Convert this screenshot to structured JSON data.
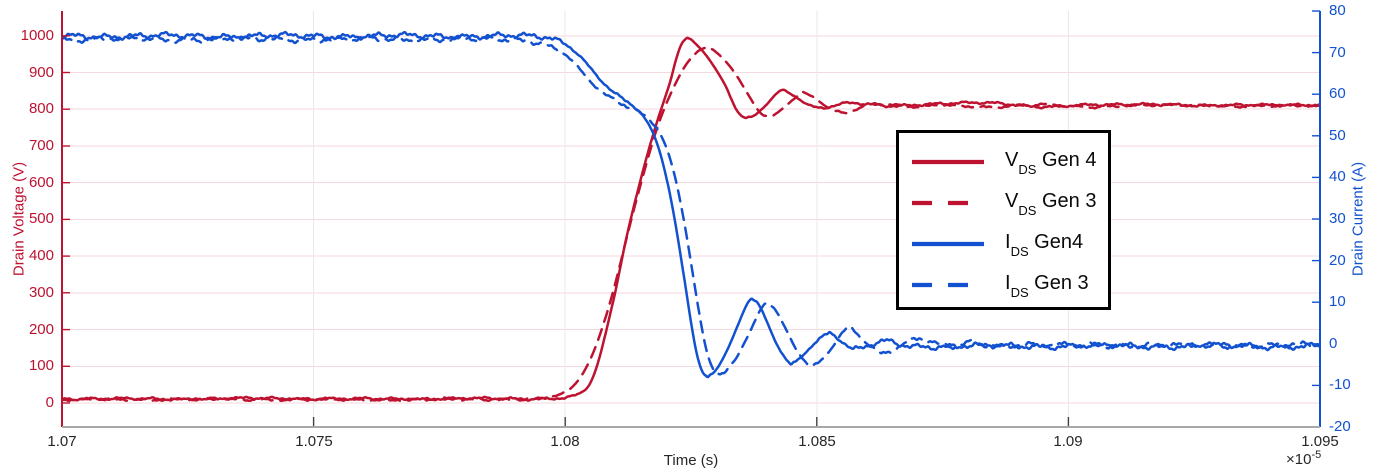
{
  "figure": {
    "background": "#ffffff"
  },
  "colors": {
    "voltage_red": "#bd1230",
    "current_blue": "#1252d0",
    "grid_horizontal": "#f4dade",
    "grid_vertical": "#e9e9e9",
    "x_axis_line": "#a8a8a8",
    "x_tick_mark": "#404040",
    "x_text": "#262626",
    "legend_border": "#000000"
  },
  "legend": {
    "entries": [
      {
        "prefix": "V",
        "sub": "DS",
        "rest": " Gen 4",
        "dashed": false,
        "color": "#bd1230"
      },
      {
        "prefix": "V",
        "sub": "DS",
        "rest": " Gen 3",
        "dashed": true,
        "color": "#bd1230"
      },
      {
        "prefix": "I",
        "sub": "DS",
        "rest": " Gen4",
        "dashed": false,
        "color": "#1252d0"
      },
      {
        "prefix": "I",
        "sub": "DS",
        "rest": " Gen 3",
        "dashed": true,
        "color": "#1252d0"
      }
    ]
  },
  "chart_data": {
    "type": "line",
    "title": "",
    "xlabel": "Time (s)",
    "x_mult_base": "×10",
    "x_mult_exp": "-5",
    "x_unit": "1e-5 s",
    "x_range": [
      1.07,
      1.095
    ],
    "x_ticks": [
      1.07,
      1.075,
      1.08,
      1.085,
      1.09,
      1.095
    ],
    "x_grid_ticks": [
      1.075,
      1.08,
      1.085,
      1.09
    ],
    "grid": true,
    "legend_position": "inside upper right",
    "y_left": {
      "label": "Drain Voltage (V)",
      "ticks": [
        0,
        100,
        200,
        300,
        400,
        500,
        600,
        700,
        800,
        900,
        1000
      ],
      "range": [
        -65,
        1067
      ],
      "color": "#bd1230"
    },
    "y_right": {
      "label": "Drain Current (A)",
      "ticks": [
        -20,
        -10,
        0,
        10,
        20,
        30,
        40,
        50,
        60,
        70,
        80
      ],
      "range": [
        -20,
        80
      ],
      "color": "#1252d0"
    },
    "series": [
      {
        "name": "V_DS Gen 4",
        "axis": "left",
        "color": "#bd1230",
        "dashed": false,
        "noise": {
          "amp": 4.2,
          "seed": 1,
          "slope0": 6
        },
        "points": [
          [
            1.07,
            12
          ],
          [
            1.072,
            11
          ],
          [
            1.074,
            12.5
          ],
          [
            1.076,
            11
          ],
          [
            1.078,
            12
          ],
          [
            1.079,
            11.5
          ],
          [
            1.0795,
            12
          ],
          [
            1.08,
            15
          ],
          [
            1.0802,
            21
          ],
          [
            1.0804,
            36
          ],
          [
            1.0805,
            55
          ],
          [
            1.0806,
            88
          ],
          [
            1.0807,
            133
          ],
          [
            1.0808,
            188
          ],
          [
            1.0809,
            246
          ],
          [
            1.081,
            305
          ],
          [
            1.0812,
            440
          ],
          [
            1.0814,
            555
          ],
          [
            1.0816,
            660
          ],
          [
            1.0818,
            755
          ],
          [
            1.082,
            838
          ],
          [
            1.0821,
            882
          ],
          [
            1.0822,
            934
          ],
          [
            1.0823,
            974
          ],
          [
            1.0824,
            992
          ],
          [
            1.0825,
            989
          ],
          [
            1.0826,
            977
          ],
          [
            1.0828,
            947
          ],
          [
            1.083,
            907
          ],
          [
            1.0832,
            860
          ],
          [
            1.0833,
            828
          ],
          [
            1.0834,
            799
          ],
          [
            1.0835,
            783
          ],
          [
            1.0836,
            777
          ],
          [
            1.0837,
            779
          ],
          [
            1.0838,
            787
          ],
          [
            1.084,
            813
          ],
          [
            1.0842,
            843
          ],
          [
            1.0843,
            852
          ],
          [
            1.0844,
            848
          ],
          [
            1.0846,
            832
          ],
          [
            1.0848,
            814
          ],
          [
            1.085,
            804
          ],
          [
            1.0851,
            802
          ],
          [
            1.0853,
            807
          ],
          [
            1.0855,
            814
          ],
          [
            1.0857,
            817
          ],
          [
            1.086,
            814
          ],
          [
            1.0865,
            810
          ],
          [
            1.087,
            812
          ],
          [
            1.0875,
            814
          ],
          [
            1.0885,
            818
          ],
          [
            1.0895,
            806
          ],
          [
            1.0905,
            812
          ],
          [
            1.0915,
            814
          ],
          [
            1.0925,
            809
          ],
          [
            1.0935,
            813
          ],
          [
            1.0945,
            810
          ],
          [
            1.095,
            811
          ]
        ]
      },
      {
        "name": "V_DS Gen 3",
        "axis": "left",
        "color": "#bd1230",
        "dashed": true,
        "noise": {
          "amp": 4.0,
          "seed": 2,
          "slope0": 6
        },
        "points": [
          [
            1.07,
            9
          ],
          [
            1.073,
            10
          ],
          [
            1.076,
            9
          ],
          [
            1.078,
            10
          ],
          [
            1.079,
            10.5
          ],
          [
            1.0794,
            11
          ],
          [
            1.0796,
            13
          ],
          [
            1.0798,
            19
          ],
          [
            1.08,
            29
          ],
          [
            1.0802,
            52
          ],
          [
            1.0804,
            92
          ],
          [
            1.0806,
            152
          ],
          [
            1.0808,
            232
          ],
          [
            1.081,
            328
          ],
          [
            1.0812,
            438
          ],
          [
            1.0814,
            545
          ],
          [
            1.0816,
            645
          ],
          [
            1.0818,
            738
          ],
          [
            1.082,
            812
          ],
          [
            1.0822,
            872
          ],
          [
            1.0824,
            921
          ],
          [
            1.0826,
            953
          ],
          [
            1.0827,
            964
          ],
          [
            1.0828,
            968
          ],
          [
            1.0829,
            965
          ],
          [
            1.083,
            955
          ],
          [
            1.0832,
            929
          ],
          [
            1.0834,
            893
          ],
          [
            1.0836,
            848
          ],
          [
            1.0838,
            804
          ],
          [
            1.0839,
            788
          ],
          [
            1.084,
            781
          ],
          [
            1.0841,
            781
          ],
          [
            1.0842,
            788
          ],
          [
            1.0844,
            811
          ],
          [
            1.0846,
            834
          ],
          [
            1.0847,
            843
          ],
          [
            1.0848,
            841
          ],
          [
            1.085,
            827
          ],
          [
            1.0852,
            806
          ],
          [
            1.0854,
            794
          ],
          [
            1.0856,
            793
          ],
          [
            1.0858,
            801
          ],
          [
            1.086,
            811
          ],
          [
            1.0862,
            816
          ],
          [
            1.0865,
            811
          ],
          [
            1.087,
            806
          ],
          [
            1.0875,
            812
          ],
          [
            1.0885,
            806
          ],
          [
            1.0895,
            812
          ],
          [
            1.0905,
            807
          ],
          [
            1.0915,
            810
          ],
          [
            1.0925,
            812
          ],
          [
            1.0935,
            807
          ],
          [
            1.0945,
            811
          ],
          [
            1.095,
            809
          ]
        ]
      },
      {
        "name": "I_DS Gen4",
        "axis": "right",
        "color": "#1252d0",
        "dashed": false,
        "noise": {
          "amp": 0.8,
          "seed": 3,
          "slope0": 0.9
        },
        "points": [
          [
            1.07,
            74
          ],
          [
            1.073,
            74
          ],
          [
            1.076,
            74
          ],
          [
            1.078,
            74
          ],
          [
            1.0795,
            73.8
          ],
          [
            1.0798,
            73.2
          ],
          [
            1.08,
            72.2
          ],
          [
            1.0802,
            70.3
          ],
          [
            1.0804,
            67.8
          ],
          [
            1.0806,
            64.9
          ],
          [
            1.0808,
            62.2
          ],
          [
            1.081,
            60
          ],
          [
            1.0812,
            58.4
          ],
          [
            1.0814,
            56.6
          ],
          [
            1.0816,
            53.8
          ],
          [
            1.0817,
            51.8
          ],
          [
            1.0818,
            49
          ],
          [
            1.0819,
            45.3
          ],
          [
            1.082,
            40.5
          ],
          [
            1.0821,
            34.8
          ],
          [
            1.0822,
            28.2
          ],
          [
            1.0823,
            20.8
          ],
          [
            1.0824,
            13
          ],
          [
            1.0825,
            5.2
          ],
          [
            1.0826,
            -1.5
          ],
          [
            1.0827,
            -6
          ],
          [
            1.0828,
            -7.8
          ],
          [
            1.0829,
            -7.5
          ],
          [
            1.083,
            -6.2
          ],
          [
            1.0832,
            -2
          ],
          [
            1.0834,
            3.5
          ],
          [
            1.0836,
            9.2
          ],
          [
            1.0837,
            10.8
          ],
          [
            1.0838,
            10.2
          ],
          [
            1.0839,
            8.2
          ],
          [
            1.084,
            5.5
          ],
          [
            1.0842,
            0
          ],
          [
            1.0844,
            -3.8
          ],
          [
            1.0845,
            -4.6
          ],
          [
            1.0846,
            -4.2
          ],
          [
            1.0848,
            -1.8
          ],
          [
            1.085,
            0.8
          ],
          [
            1.0852,
            2.4
          ],
          [
            1.0853,
            2.2
          ],
          [
            1.0855,
            0.5
          ],
          [
            1.0857,
            -1.2
          ],
          [
            1.0858,
            -1.5
          ],
          [
            1.086,
            -0.8
          ],
          [
            1.0862,
            0.2
          ],
          [
            1.0864,
            0.6
          ],
          [
            1.0866,
            0
          ],
          [
            1.087,
            -0.5
          ],
          [
            1.088,
            -0.6
          ],
          [
            1.089,
            -0.5
          ],
          [
            1.09,
            -0.6
          ],
          [
            1.091,
            -0.5
          ],
          [
            1.092,
            -0.6
          ],
          [
            1.093,
            -0.5
          ],
          [
            1.094,
            -0.6
          ],
          [
            1.095,
            -0.5
          ]
        ]
      },
      {
        "name": "I_DS Gen 3",
        "axis": "right",
        "color": "#1252d0",
        "dashed": true,
        "noise": {
          "amp": 0.75,
          "seed": 4,
          "slope0": 0.9
        },
        "points": [
          [
            1.07,
            73.2
          ],
          [
            1.073,
            73.2
          ],
          [
            1.076,
            73.2
          ],
          [
            1.078,
            73.2
          ],
          [
            1.0792,
            73
          ],
          [
            1.0795,
            72.4
          ],
          [
            1.0797,
            71.5
          ],
          [
            1.08,
            69.6
          ],
          [
            1.0802,
            67.2
          ],
          [
            1.0804,
            64.4
          ],
          [
            1.0806,
            61.8
          ],
          [
            1.0808,
            59.8
          ],
          [
            1.081,
            58.4
          ],
          [
            1.0812,
            57.3
          ],
          [
            1.0814,
            56.2
          ],
          [
            1.0816,
            54.7
          ],
          [
            1.0818,
            52.2
          ],
          [
            1.0819,
            50.2
          ],
          [
            1.082,
            47.5
          ],
          [
            1.0821,
            43.8
          ],
          [
            1.0822,
            39.2
          ],
          [
            1.0823,
            33.5
          ],
          [
            1.0824,
            26.8
          ],
          [
            1.0825,
            19.5
          ],
          [
            1.0826,
            12
          ],
          [
            1.0827,
            4.8
          ],
          [
            1.0828,
            -1.2
          ],
          [
            1.0829,
            -5
          ],
          [
            1.083,
            -7
          ],
          [
            1.0831,
            -7.4
          ],
          [
            1.0832,
            -6.6
          ],
          [
            1.0834,
            -3.4
          ],
          [
            1.0836,
            1.2
          ],
          [
            1.0838,
            6.2
          ],
          [
            1.0839,
            8.6
          ],
          [
            1.084,
            9.8
          ],
          [
            1.0841,
            9.4
          ],
          [
            1.0842,
            7.8
          ],
          [
            1.0844,
            3.2
          ],
          [
            1.0846,
            -1.6
          ],
          [
            1.0848,
            -4.6
          ],
          [
            1.0849,
            -5.4
          ],
          [
            1.085,
            -5
          ],
          [
            1.0852,
            -2.6
          ],
          [
            1.0854,
            0.8
          ],
          [
            1.0855,
            2.6
          ],
          [
            1.0856,
            3.6
          ],
          [
            1.0857,
            3.4
          ],
          [
            1.0858,
            2.4
          ],
          [
            1.086,
            0.2
          ],
          [
            1.0862,
            -1.6
          ],
          [
            1.0863,
            -2.2
          ],
          [
            1.0864,
            -2
          ],
          [
            1.0866,
            -0.8
          ],
          [
            1.0868,
            0.6
          ],
          [
            1.087,
            1.2
          ],
          [
            1.0872,
            0.8
          ],
          [
            1.0874,
            -0.2
          ],
          [
            1.0876,
            -0.8
          ],
          [
            1.0878,
            -0.6
          ],
          [
            1.088,
            0.2
          ],
          [
            1.0885,
            -0.4
          ],
          [
            1.089,
            -0.2
          ],
          [
            1.09,
            -0.4
          ],
          [
            1.091,
            -0.3
          ],
          [
            1.092,
            -0.4
          ],
          [
            1.093,
            -0.3
          ],
          [
            1.094,
            -0.4
          ],
          [
            1.095,
            -0.3
          ]
        ]
      }
    ]
  }
}
